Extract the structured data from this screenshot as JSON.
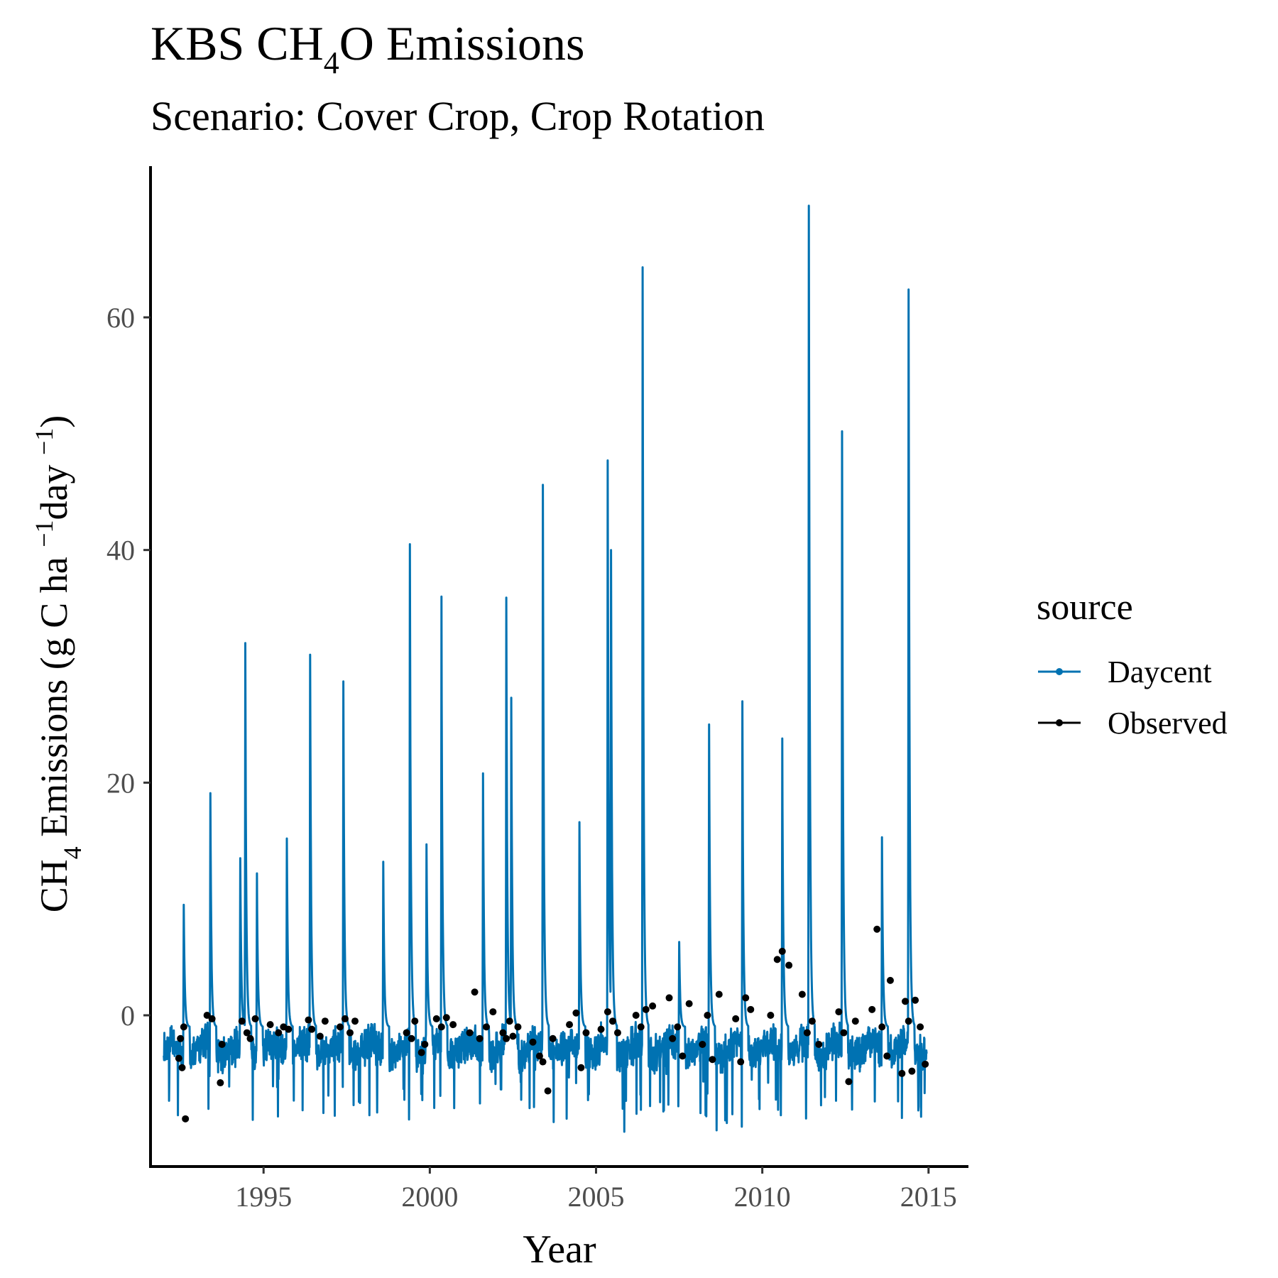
{
  "chart_data": {
    "type": "line",
    "title_parts": {
      "a": "KBS CH",
      "sub": "4",
      "b": "O Emissions"
    },
    "subtitle": "Scenario: Cover Crop, Crop Rotation",
    "xlabel": "Year",
    "ylabel_parts": {
      "a": "CH",
      "sub": "4",
      "b": " Emissions (g C ha ",
      "sup1": "−1",
      "c": "day ",
      "sup2": "−1",
      "d": ")"
    },
    "xlim": [
      1991.6,
      2016.2
    ],
    "ylim": [
      -13,
      73
    ],
    "x_ticks": [
      1995,
      2000,
      2005,
      2010,
      2015
    ],
    "y_ticks": [
      0,
      20,
      40,
      60
    ],
    "grid": false,
    "legend": {
      "title": "source",
      "position": "right",
      "entries": [
        {
          "label": "Daycent",
          "color": "#0072B2"
        },
        {
          "label": "Observed",
          "color": "#000000"
        }
      ]
    },
    "series": [
      {
        "name": "Daycent",
        "color": "#0072B2",
        "style": "line",
        "peaks": [
          [
            1992.6,
            10.5
          ],
          [
            1993.4,
            20.1
          ],
          [
            1994.3,
            14.5
          ],
          [
            1994.45,
            33.0
          ],
          [
            1994.8,
            13.2
          ],
          [
            1995.7,
            16.2
          ],
          [
            1996.4,
            32.0
          ],
          [
            1997.4,
            29.7
          ],
          [
            1998.6,
            14.2
          ],
          [
            1999.4,
            41.5
          ],
          [
            1999.9,
            15.7
          ],
          [
            2000.35,
            37.0
          ],
          [
            2001.6,
            21.8
          ],
          [
            2002.3,
            36.9
          ],
          [
            2002.45,
            28.3
          ],
          [
            2003.4,
            46.6
          ],
          [
            2004.5,
            17.6
          ],
          [
            2005.35,
            48.7
          ],
          [
            2005.45,
            41.0
          ],
          [
            2006.4,
            65.3
          ],
          [
            2007.5,
            7.3
          ],
          [
            2008.4,
            26.0
          ],
          [
            2009.4,
            28.0
          ],
          [
            2010.6,
            24.8
          ],
          [
            2011.4,
            70.6
          ],
          [
            2012.4,
            51.2
          ],
          [
            2013.6,
            16.3
          ],
          [
            2014.4,
            63.4
          ]
        ]
      },
      {
        "name": "Observed",
        "color": "#000000",
        "style": "points",
        "x": [
          1992.45,
          1992.5,
          1992.55,
          1992.6,
          1992.65,
          1993.3,
          1993.45,
          1993.7,
          1993.75,
          1994.35,
          1994.5,
          1994.6,
          1994.75,
          1995.2,
          1995.45,
          1995.6,
          1995.75,
          1996.35,
          1996.45,
          1996.7,
          1996.85,
          1997.3,
          1997.45,
          1997.6,
          1997.75,
          1999.3,
          1999.45,
          1999.55,
          1999.75,
          1999.85,
          2000.2,
          2000.35,
          2000.5,
          2000.7,
          2001.2,
          2001.35,
          2001.5,
          2001.7,
          2001.9,
          2002.2,
          2002.3,
          2002.4,
          2002.5,
          2002.65,
          2003.1,
          2003.3,
          2003.4,
          2003.55,
          2003.7,
          2004.2,
          2004.4,
          2004.55,
          2004.7,
          2005.15,
          2005.35,
          2005.5,
          2005.65,
          2006.2,
          2006.35,
          2006.5,
          2006.7,
          2007.2,
          2007.3,
          2007.45,
          2007.6,
          2007.8,
          2008.2,
          2008.35,
          2008.5,
          2008.7,
          2009.2,
          2009.35,
          2009.5,
          2009.65,
          2010.25,
          2010.45,
          2010.6,
          2010.8,
          2011.2,
          2011.35,
          2011.5,
          2011.7,
          2012.3,
          2012.45,
          2012.6,
          2012.8,
          2013.3,
          2013.45,
          2013.6,
          2013.75,
          2013.85,
          2014.2,
          2014.3,
          2014.4,
          2014.5,
          2014.6,
          2014.75,
          2014.9
        ],
        "y": [
          -3.7,
          -2.0,
          -4.5,
          -1.0,
          -8.9,
          0.0,
          -0.3,
          -5.8,
          -2.5,
          -0.5,
          -1.5,
          -2.0,
          -0.3,
          -0.8,
          -1.5,
          -1.0,
          -1.2,
          -0.4,
          -1.2,
          -1.8,
          -0.5,
          -1.0,
          -0.3,
          -1.5,
          -0.5,
          -1.5,
          -2.0,
          -0.5,
          -3.2,
          -2.5,
          -0.3,
          -1.0,
          -0.2,
          -0.8,
          -1.5,
          2.0,
          -2.0,
          -1.0,
          0.3,
          -1.5,
          -2.0,
          -0.5,
          -1.8,
          -1.0,
          -2.3,
          -3.5,
          -4.0,
          -6.5,
          -2.0,
          -0.8,
          0.2,
          -4.5,
          -1.5,
          -1.2,
          0.3,
          -0.5,
          -1.5,
          0.0,
          -1.0,
          0.5,
          0.8,
          1.5,
          -2.0,
          -1.0,
          -3.5,
          1.0,
          -2.5,
          0.0,
          -3.8,
          1.8,
          -0.3,
          -4.0,
          1.5,
          0.5,
          0.0,
          4.8,
          5.5,
          4.3,
          1.8,
          -1.5,
          -0.5,
          -2.5,
          0.3,
          -1.5,
          -5.7,
          -0.5,
          0.5,
          7.4,
          -1.0,
          -3.5,
          3.0,
          -5.0,
          1.2,
          -0.5,
          -4.8,
          1.3,
          -1.0,
          -4.2
        ]
      }
    ]
  }
}
